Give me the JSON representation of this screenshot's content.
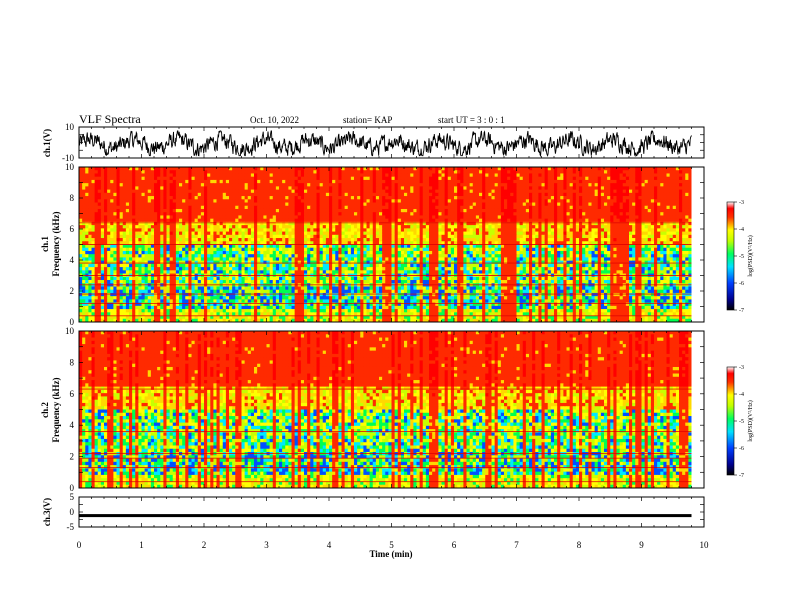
{
  "header": {
    "title": "VLF Spectra",
    "date": "Oct. 10, 2022",
    "station": "station= KAP",
    "start": "start UT =  3 : 0 : 1"
  },
  "chart_data": [
    {
      "type": "line",
      "panel": "ch1-waveform",
      "ylabel": "ch.1(V)",
      "ylim": [
        -10,
        10
      ],
      "yticks": [
        "10",
        "-10"
      ],
      "xlim": [
        0,
        10
      ],
      "description_values": "noisy waveform, mostly between -8 and 6 V over 0–9.8 min"
    },
    {
      "type": "heatmap",
      "panel": "ch1-spectrogram",
      "ylabel": "ch.1\nFrequency (kHz)",
      "ylabel_lines": [
        "ch.1",
        "Frequency (kHz)"
      ],
      "ylim": [
        0,
        10
      ],
      "yticks": [
        "0",
        "2",
        "4",
        "6",
        "8",
        "10"
      ],
      "xlim": [
        0,
        10
      ],
      "data_end_min": 9.8,
      "colorbar": {
        "label": "log(PSD)(V²/Hz)",
        "range": [
          -7,
          -3
        ],
        "ticks": [
          "-3",
          "-4",
          "-5",
          "-6",
          "-7"
        ]
      }
    },
    {
      "type": "heatmap",
      "panel": "ch2-spectrogram",
      "ylabel_lines": [
        "ch.2",
        "Frequency (kHz)"
      ],
      "ylim": [
        0,
        10
      ],
      "yticks": [
        "0",
        "2",
        "4",
        "6",
        "8",
        "10"
      ],
      "xlim": [
        0,
        10
      ],
      "data_end_min": 9.8,
      "colorbar": {
        "label": "log(PSD)(V²/Hz)",
        "range": [
          -7,
          -3
        ],
        "ticks": [
          "-3",
          "-4",
          "-5",
          "-6",
          "-7"
        ]
      }
    },
    {
      "type": "line",
      "panel": "ch3-waveform",
      "ylabel": "ch.3(V)",
      "ylim": [
        -5,
        5
      ],
      "yticks": [
        "5",
        "0",
        "-5"
      ],
      "xlim": [
        0,
        10
      ],
      "level": -1.2,
      "amplitude": 0.5
    }
  ],
  "xaxis": {
    "label": "Time (min)",
    "ticks": [
      "0",
      "1",
      "2",
      "3",
      "4",
      "5",
      "6",
      "7",
      "8",
      "9",
      "10"
    ]
  },
  "colors": {
    "frame": "#000000",
    "background": "#ffffff"
  }
}
